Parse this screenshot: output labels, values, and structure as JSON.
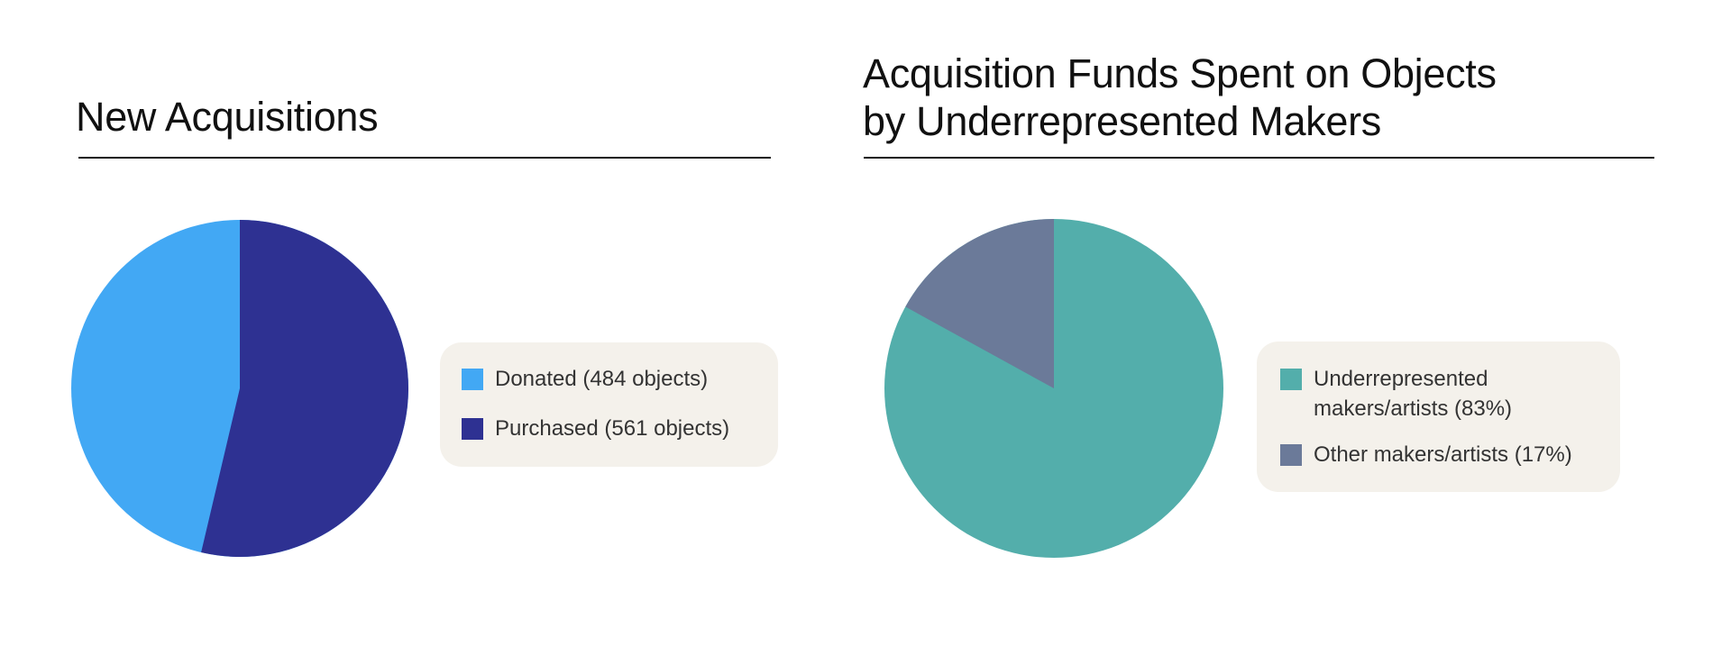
{
  "charts": [
    {
      "title_lines": [
        "New Acquisitions"
      ],
      "legend": [
        {
          "label": "Donated (484 objects)",
          "color": "#42a8f4"
        },
        {
          "label": "Purchased (561 objects)",
          "color": "#2e3192"
        }
      ]
    },
    {
      "title_lines": [
        "Acquisition Funds Spent on Objects",
        "by Underrepresented Makers"
      ],
      "legend": [
        {
          "label_lines": [
            "Underrepresented",
            "makers/artists (83%)"
          ],
          "color": "#53aeab"
        },
        {
          "label": "Other makers/artists (17%)",
          "color": "#6b7a99"
        }
      ]
    }
  ],
  "colors": {
    "background": "#ffffff",
    "legend_background": "#f4f1eb",
    "rule": "#111111",
    "text": "#333333"
  },
  "chart_data": [
    {
      "type": "pie",
      "title": "New Acquisitions",
      "categories": [
        "Donated",
        "Purchased"
      ],
      "values": [
        484,
        561
      ],
      "units": "objects",
      "percent": [
        46.3,
        53.7
      ],
      "colors": [
        "#42a8f4",
        "#2e3192"
      ],
      "start_angle": "12 o'clock, clockwise starting with Purchased",
      "legend_position": "right"
    },
    {
      "type": "pie",
      "title": "Acquisition Funds Spent on Objects by Underrepresented Makers",
      "categories": [
        "Underrepresented makers/artists",
        "Other makers/artists"
      ],
      "values": [
        83,
        17
      ],
      "units": "%",
      "colors": [
        "#53aeab",
        "#6b7a99"
      ],
      "start_angle": "12 o'clock, clockwise starting with Underrepresented",
      "legend_position": "right"
    }
  ]
}
